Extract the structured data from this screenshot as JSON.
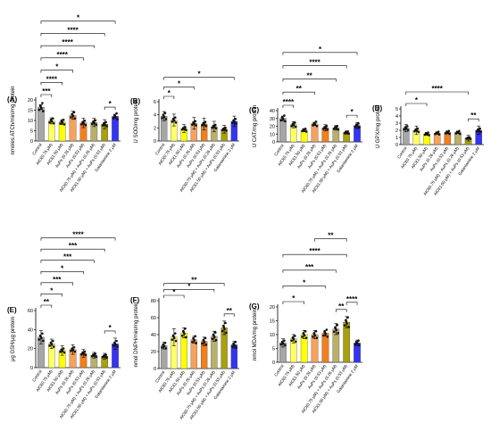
{
  "categories": [
    "Control",
    "AlCl(0.75 μM)",
    "AlCl(1.50 μM)",
    "AuPs (0.26 μM)",
    "AuPs (0.53 μM)",
    "AlCl(0.75 μM) + AuPs (0.26 μM)",
    "AlCl(1.50 μM) + AuPs (0.53 μM)",
    "Galantamine 2 μM"
  ],
  "colors": [
    "#a6a6a6",
    "#ffff66",
    "#ffff00",
    "#f5a35c",
    "#f07f1e",
    "#b8b06a",
    "#a8a010",
    "#3535f0"
  ],
  "chart_data": [
    {
      "panel": "(A)",
      "type": "bar",
      "ylabel": "nmoles ATCh/min/mg protein",
      "ylim": [
        0,
        20
      ],
      "yticks": [
        0,
        5,
        10,
        15,
        20
      ],
      "values": [
        16.5,
        9.8,
        9.2,
        12.5,
        8.8,
        9.0,
        8.2,
        12.0
      ],
      "errors": [
        1.2,
        1.5,
        1.2,
        2.0,
        2.3,
        2.0,
        2.2,
        1.0
      ],
      "brackets": [
        {
          "from": 0,
          "to": 1,
          "label": "***"
        },
        {
          "from": 0,
          "to": 2,
          "label": "****"
        },
        {
          "from": 0,
          "to": 3,
          "label": "*"
        },
        {
          "from": 0,
          "to": 4,
          "label": "****"
        },
        {
          "from": 0,
          "to": 5,
          "label": "****"
        },
        {
          "from": 0,
          "to": 6,
          "label": "****"
        },
        {
          "from": 0,
          "to": 7,
          "label": "*"
        },
        {
          "from": 6,
          "to": 7,
          "label": "*"
        }
      ]
    },
    {
      "panel": "(B)",
      "type": "bar",
      "ylabel": "U SOD/mg protein",
      "ylim": [
        0,
        6
      ],
      "yticks": [
        0,
        2,
        4,
        6
      ],
      "values": [
        3.8,
        3.2,
        1.9,
        2.7,
        2.6,
        2.2,
        1.8,
        3.0
      ],
      "errors": [
        0.7,
        0.9,
        0.6,
        0.9,
        0.9,
        0.8,
        0.6,
        0.8
      ],
      "brackets": [
        {
          "from": 0,
          "to": 1,
          "label": "*"
        },
        {
          "from": 0,
          "to": 3,
          "label": "*"
        },
        {
          "from": 0,
          "to": 7,
          "label": "*"
        }
      ]
    },
    {
      "panel": "(C)",
      "type": "bar",
      "ylabel": "U CAT/mg protein",
      "ylim": [
        0,
        40
      ],
      "yticks": [
        0,
        10,
        20,
        30,
        40
      ],
      "values": [
        30,
        22,
        15,
        23,
        18,
        18,
        12,
        21
      ],
      "errors": [
        3,
        4,
        2,
        2,
        4,
        3,
        2,
        4
      ],
      "brackets": [
        {
          "from": 0,
          "to": 1,
          "label": "****"
        },
        {
          "from": 0,
          "to": 3,
          "label": "**"
        },
        {
          "from": 0,
          "to": 5,
          "label": "**"
        },
        {
          "from": 0,
          "to": 6,
          "label": "****"
        },
        {
          "from": 0,
          "to": 7,
          "label": "*"
        },
        {
          "from": 6,
          "to": 7,
          "label": "*"
        }
      ]
    },
    {
      "panel": "(D)",
      "type": "bar",
      "ylabel": "U GPX/mg protein",
      "ylim": [
        0,
        5
      ],
      "yticks": [
        0,
        1,
        2,
        3,
        4,
        5
      ],
      "values": [
        2.3,
        2.0,
        1.5,
        1.6,
        1.7,
        1.7,
        0.9,
        2.0
      ],
      "errors": [
        0.5,
        0.6,
        0.2,
        0.1,
        0.2,
        0.1,
        0.4,
        0.6
      ],
      "brackets": [
        {
          "from": 0,
          "to": 2,
          "label": "*"
        },
        {
          "from": 0,
          "to": 6,
          "label": "****"
        },
        {
          "from": 6,
          "to": 7,
          "label": "**"
        }
      ]
    },
    {
      "panel": "(E)",
      "type": "bar",
      "ylabel": "μg GSH/μg protein",
      "ylim": [
        0,
        60
      ],
      "yticks": [
        0,
        20,
        40,
        60
      ],
      "values": [
        32,
        25,
        18,
        19,
        15,
        13,
        12,
        25
      ],
      "errors": [
        7,
        5,
        5,
        5,
        4,
        3,
        3,
        6
      ],
      "brackets": [
        {
          "from": 0,
          "to": 1,
          "label": "**"
        },
        {
          "from": 0,
          "to": 2,
          "label": "*"
        },
        {
          "from": 0,
          "to": 3,
          "label": "***"
        },
        {
          "from": 0,
          "to": 4,
          "label": "*"
        },
        {
          "from": 0,
          "to": 5,
          "label": "***"
        },
        {
          "from": 0,
          "to": 6,
          "label": "***"
        },
        {
          "from": 0,
          "to": 7,
          "label": "****"
        },
        {
          "from": 6,
          "to": 7,
          "label": "*"
        }
      ]
    },
    {
      "panel": "(F)",
      "type": "bar",
      "ylabel": "nmol DNPH/min/mg protein",
      "ylim": [
        0,
        80
      ],
      "yticks": [
        0,
        20,
        40,
        60,
        80
      ],
      "values": [
        27,
        37,
        42,
        34,
        32,
        38,
        48,
        28
      ],
      "errors": [
        4,
        10,
        6,
        4,
        5,
        6,
        8,
        4
      ],
      "brackets": [
        {
          "from": 0,
          "to": 2,
          "label": "*"
        },
        {
          "from": 0,
          "to": 5,
          "label": "*"
        },
        {
          "from": 0,
          "to": 6,
          "label": "**"
        },
        {
          "from": 6,
          "to": 7,
          "label": "**"
        }
      ]
    },
    {
      "panel": "(G)",
      "type": "bar",
      "ylabel": "nmol MDA/mg protein",
      "ylim": [
        0,
        20
      ],
      "yticks": [
        0,
        5,
        10,
        15,
        20
      ],
      "values": [
        7,
        8.5,
        10,
        10,
        10.5,
        12,
        14.5,
        7
      ],
      "errors": [
        1.5,
        1.5,
        1.5,
        1.5,
        1.0,
        2.0,
        2.0,
        1.0
      ],
      "brackets": [
        {
          "from": 0,
          "to": 2,
          "label": "*"
        },
        {
          "from": 0,
          "to": 4,
          "label": "*"
        },
        {
          "from": 0,
          "to": 5,
          "label": "***"
        },
        {
          "from": 0,
          "to": 6,
          "label": "****"
        },
        {
          "from": 3,
          "to": 6,
          "label": "**"
        },
        {
          "from": 5,
          "to": 6,
          "label": "**"
        },
        {
          "from": 6,
          "to": 7,
          "label": "****"
        }
      ]
    }
  ]
}
